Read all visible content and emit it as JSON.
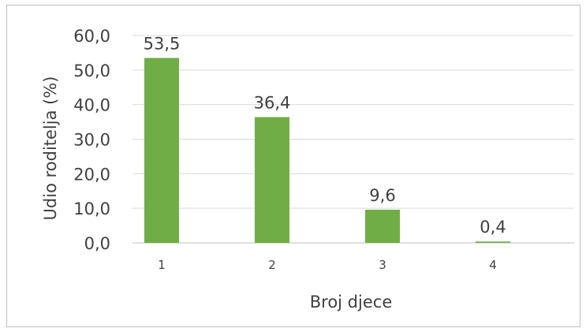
{
  "chart_data": {
    "type": "bar",
    "categories": [
      "1",
      "2",
      "3",
      "4"
    ],
    "values": [
      53.5,
      36.4,
      9.6,
      0.4
    ],
    "value_labels": [
      "53,5",
      "36,4",
      "9,6",
      "0,4"
    ],
    "xlabel": "Broj djece",
    "ylabel": "Udio roditelja (%)",
    "ylim": [
      0,
      60
    ],
    "yticks": [
      0,
      10,
      20,
      30,
      40,
      50,
      60
    ],
    "ytick_labels": [
      "0,0",
      "10,0",
      "20,0",
      "30,0",
      "40,0",
      "50,0",
      "60,0"
    ],
    "grid": true,
    "legend": "none",
    "colors": {
      "bar": "#70ad47",
      "grid": "#d9d9d9",
      "text": "#404040",
      "axis": "#bfbfbf"
    }
  }
}
